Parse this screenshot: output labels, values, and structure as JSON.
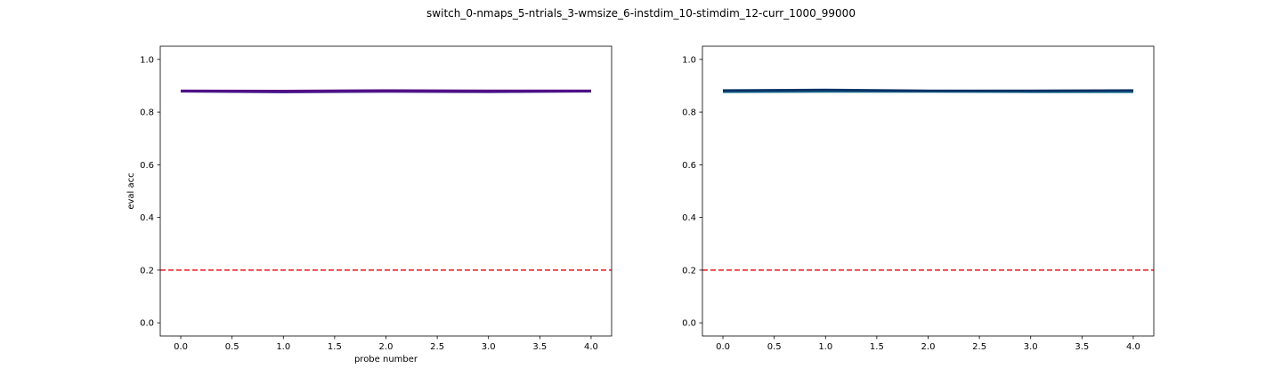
{
  "figure": {
    "suptitle": "switch_0-nmaps_5-ntrials_3-wmsize_6-instdim_10-stimdim_12-curr_1000_99000"
  },
  "chart_data": [
    {
      "type": "line",
      "xlabel": "probe number",
      "ylabel": "eval acc",
      "xlim": [
        -0.2,
        4.2
      ],
      "ylim": [
        -0.05,
        1.05
      ],
      "xticks": [
        0.0,
        0.5,
        1.0,
        1.5,
        2.0,
        2.5,
        3.0,
        3.5,
        4.0
      ],
      "xtick_labels": [
        "0.0",
        "0.5",
        "1.0",
        "1.5",
        "2.0",
        "2.5",
        "3.0",
        "3.5",
        "4.0"
      ],
      "yticks": [
        0.0,
        0.2,
        0.4,
        0.6,
        0.8,
        1.0
      ],
      "ytick_labels": [
        "0.0",
        "0.2",
        "0.4",
        "0.6",
        "0.8",
        "1.0"
      ],
      "grid": false,
      "hline": {
        "y": 0.2,
        "color": "#e8171f",
        "style": "dashed"
      },
      "x": [
        0,
        1,
        2,
        3,
        4
      ],
      "series": [
        {
          "color": "#3b1e8f",
          "values": [
            0.878,
            0.875,
            0.877,
            0.876,
            0.878
          ]
        },
        {
          "color": "#4b0f86",
          "values": [
            0.88,
            0.88,
            0.88,
            0.879,
            0.88
          ]
        },
        {
          "color": "#5a0a82",
          "values": [
            0.882,
            0.881,
            0.883,
            0.882,
            0.882
          ]
        },
        {
          "color": "#42148a",
          "values": [
            0.879,
            0.878,
            0.881,
            0.878,
            0.879
          ]
        },
        {
          "color": "#520d84",
          "values": [
            0.881,
            0.879,
            0.88,
            0.88,
            0.881
          ]
        }
      ]
    },
    {
      "type": "line",
      "xlabel": "",
      "ylabel": "",
      "xlim": [
        -0.2,
        4.2
      ],
      "ylim": [
        -0.05,
        1.05
      ],
      "xticks": [
        0.0,
        0.5,
        1.0,
        1.5,
        2.0,
        2.5,
        3.0,
        3.5,
        4.0
      ],
      "xtick_labels": [
        "0.0",
        "0.5",
        "1.0",
        "1.5",
        "2.0",
        "2.5",
        "3.0",
        "3.5",
        "4.0"
      ],
      "yticks": [
        0.0,
        0.2,
        0.4,
        0.6,
        0.8,
        1.0
      ],
      "ytick_labels": [
        "0.0",
        "0.2",
        "0.4",
        "0.6",
        "0.8",
        "1.0"
      ],
      "grid": false,
      "hline": {
        "y": 0.2,
        "color": "#e8171f",
        "style": "dashed"
      },
      "x": [
        0,
        1,
        2,
        3,
        4
      ],
      "series": [
        {
          "color": "#1a6f8c",
          "values": [
            0.876,
            0.877,
            0.877,
            0.876,
            0.876
          ]
        },
        {
          "color": "#0f5a87",
          "values": [
            0.879,
            0.88,
            0.879,
            0.878,
            0.879
          ]
        },
        {
          "color": "#0c3d73",
          "values": [
            0.883,
            0.885,
            0.882,
            0.881,
            0.882
          ]
        },
        {
          "color": "#103f74",
          "values": [
            0.881,
            0.883,
            0.88,
            0.88,
            0.881
          ]
        },
        {
          "color": "#0a2e60",
          "values": [
            0.882,
            0.884,
            0.881,
            0.882,
            0.883
          ]
        }
      ]
    }
  ]
}
